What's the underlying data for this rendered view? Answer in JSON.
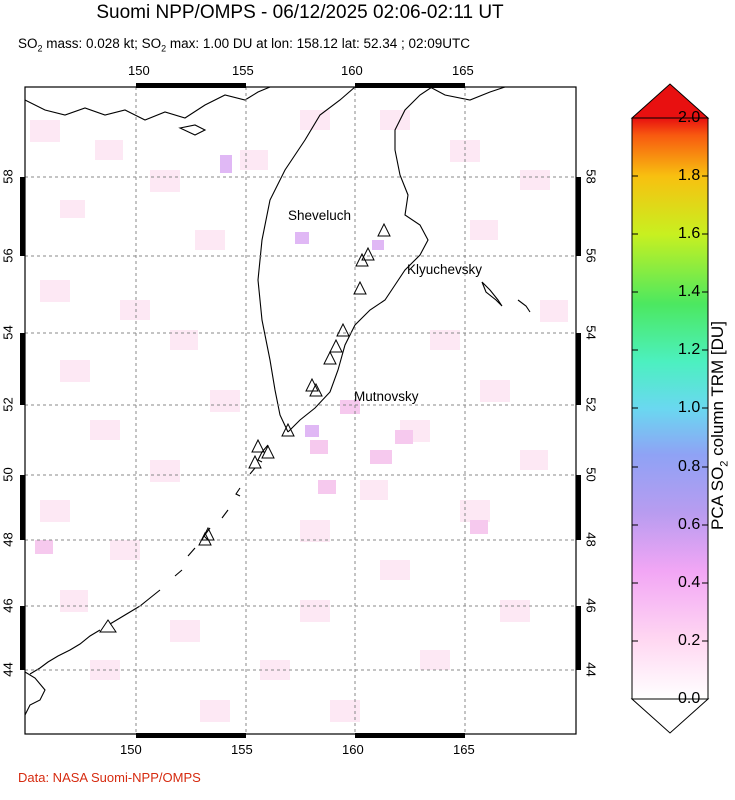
{
  "header": {
    "title": "Suomi NPP/OMPS - 06/12/2025 02:06-02:11 UT",
    "subtitle_prefix": "SO",
    "subtitle_sub": "2",
    "subtitle_mid": " mass: 0.028 kt; SO",
    "subtitle_sub2": "2",
    "subtitle_rest": " max: 1.00 DU at lon: 158.12 lat: 52.34 ; 02:09UTC"
  },
  "map": {
    "lon_ticks": [
      "150",
      "155",
      "160",
      "165"
    ],
    "lat_ticks": [
      "44",
      "46",
      "48",
      "50",
      "52",
      "54",
      "56",
      "58"
    ],
    "volcanoes": [
      {
        "name": "Sheveluch",
        "lon": 161.4,
        "lat": 56.65
      },
      {
        "name": "Klyuchevsky",
        "lon": 160.6,
        "lat": 56.06
      },
      {
        "name": "Mutnovsky",
        "lon": 158.2,
        "lat": 52.45
      }
    ]
  },
  "colorbar": {
    "ticks": [
      "0.0",
      "0.2",
      "0.4",
      "0.6",
      "0.8",
      "1.0",
      "1.2",
      "1.4",
      "1.6",
      "1.8",
      "2.0"
    ],
    "title_pre": "PCA SO",
    "title_sub": "2",
    "title_post": " column TRM [DU]",
    "colors": [
      "#ffffff",
      "#ffd8f2",
      "#f2a6f5",
      "#b89cf0",
      "#8fa2f5",
      "#6ad8f0",
      "#4cf0c0",
      "#4ce860",
      "#c8f020",
      "#f8c010",
      "#f85a10",
      "#e81010"
    ]
  },
  "footer": {
    "credit": "Data: NASA Suomi-NPP/OMPS"
  }
}
